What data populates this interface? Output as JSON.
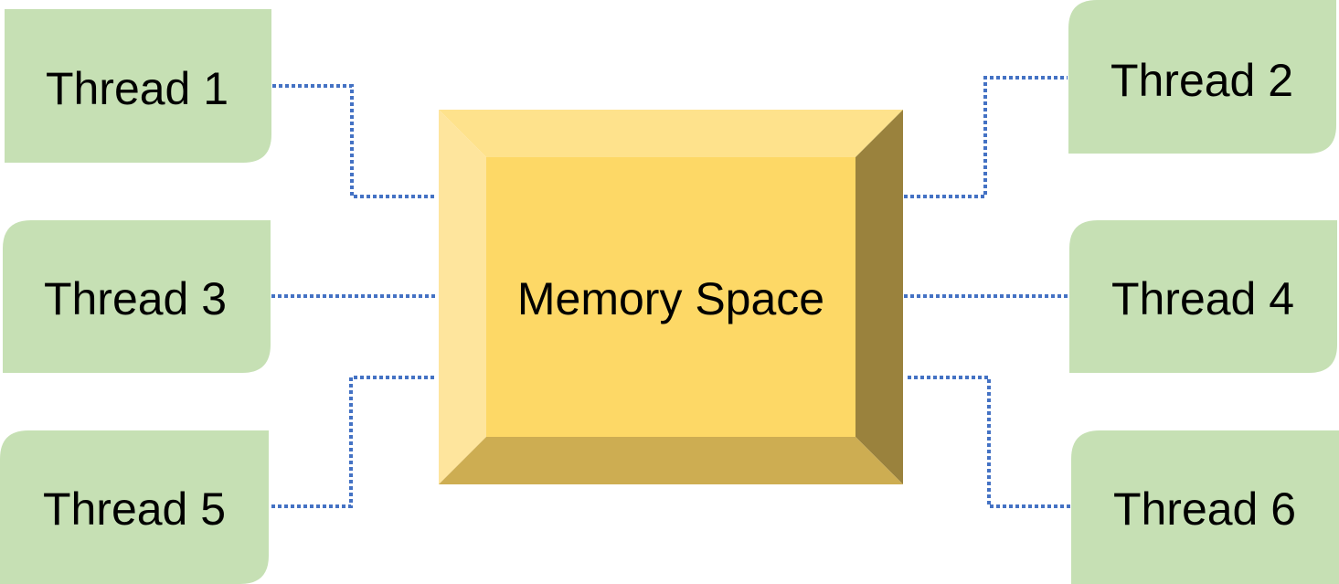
{
  "memory": {
    "label": "Memory Space"
  },
  "threads": [
    {
      "label": "Thread 1"
    },
    {
      "label": "Thread 2"
    },
    {
      "label": "Thread 3"
    },
    {
      "label": "Thread 4"
    },
    {
      "label": "Thread 5"
    },
    {
      "label": "Thread 6"
    }
  ],
  "colors": {
    "thread_fill": "#c6e0b4",
    "memory_face": "#fdd866",
    "memory_top_bevel": "#fee28c",
    "memory_left_bevel": "#fee59d",
    "memory_right_bevel": "#9a823d",
    "memory_bottom_bevel": "#cdad52",
    "connector": "#4472c4"
  }
}
